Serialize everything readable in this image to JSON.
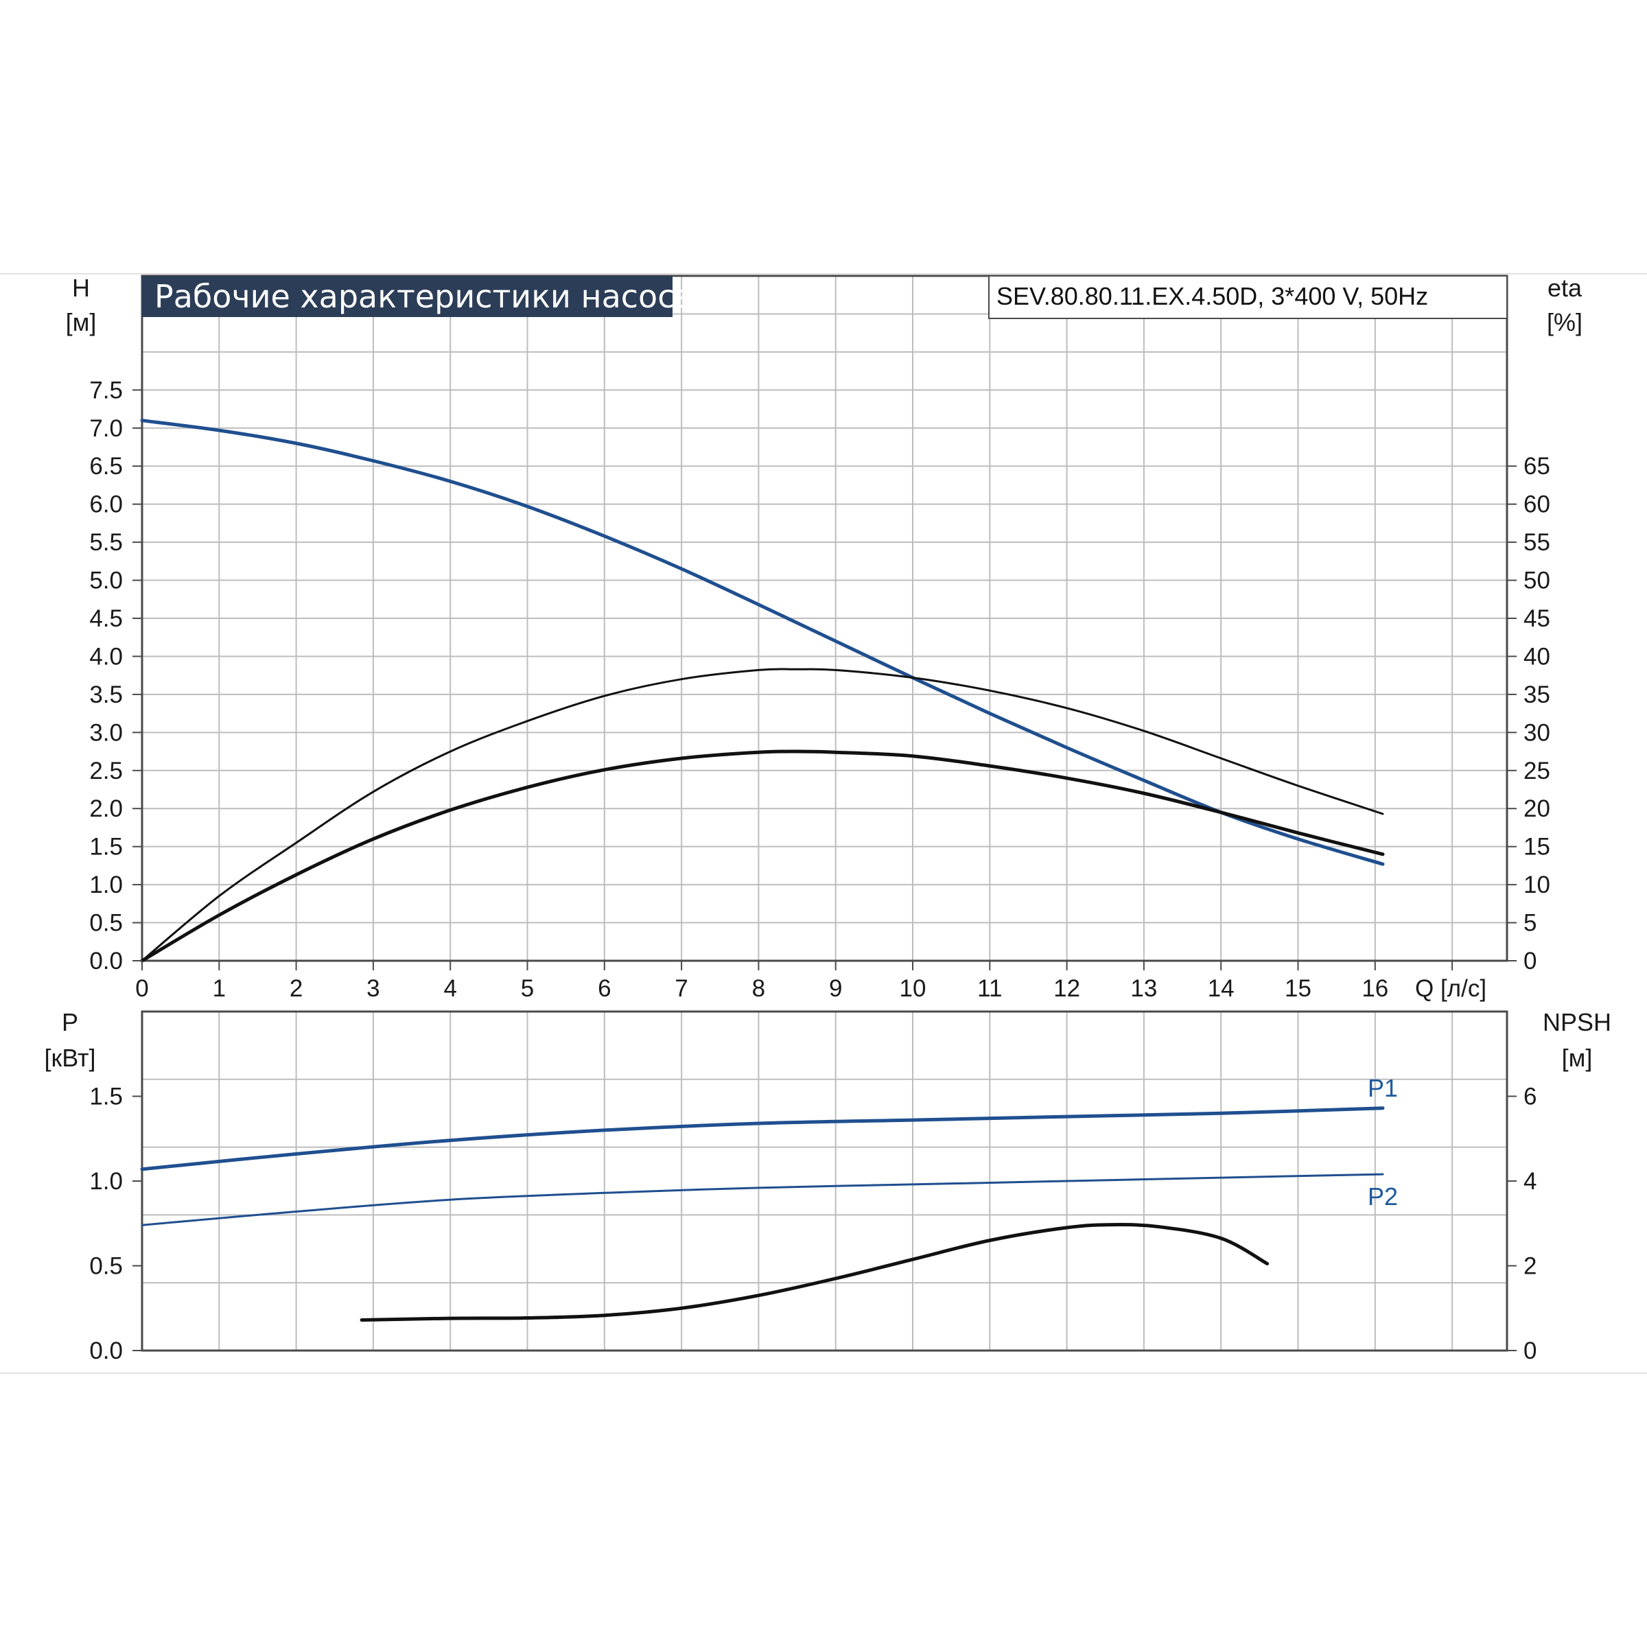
{
  "header": {
    "title": "Рабочие характеристики насоса",
    "model": "SEV.80.80.11.EX.4.50D, 3*400 V, 50Hz"
  },
  "colors": {
    "blue": "#1f4f8f",
    "black": "#111111",
    "grid": "#bdbdbd",
    "title_bg": "#2c3d57"
  },
  "chart_data": [
    {
      "type": "line",
      "id": "head-efficiency",
      "x_label": "Q [л/с]",
      "xlim": [
        0,
        17.7
      ],
      "x_ticks": [
        "0",
        "1",
        "2",
        "3",
        "4",
        "5",
        "6",
        "7",
        "8",
        "9",
        "10",
        "11",
        "12",
        "13",
        "14",
        "15",
        "16"
      ],
      "y_label_line1": "H",
      "y_label_line2": "[м]",
      "ylim": [
        0,
        9
      ],
      "y_ticks": [
        "0.0",
        "0.5",
        "1.0",
        "1.5",
        "2.0",
        "2.5",
        "3.0",
        "3.5",
        "4.0",
        "4.5",
        "5.0",
        "5.5",
        "6.0",
        "6.5",
        "7.0",
        "7.5"
      ],
      "y2_label_line1": "eta",
      "y2_label_line2": "[%]",
      "y2lim": [
        0,
        90
      ],
      "y2_ticks": [
        "0",
        "5",
        "10",
        "15",
        "20",
        "25",
        "30",
        "35",
        "40",
        "45",
        "50",
        "55",
        "60",
        "65"
      ],
      "grid": true,
      "series": [
        {
          "key": "head",
          "axis": "y",
          "color": "#1f4f8f",
          "width": 5,
          "points": [
            [
              0,
              7.1
            ],
            [
              1,
              6.97
            ],
            [
              2,
              6.8
            ],
            [
              3,
              6.57
            ],
            [
              4,
              6.3
            ],
            [
              5,
              5.97
            ],
            [
              6,
              5.58
            ],
            [
              7,
              5.15
            ],
            [
              8,
              4.68
            ],
            [
              9,
              4.2
            ],
            [
              10,
              3.72
            ],
            [
              11,
              3.25
            ],
            [
              12,
              2.8
            ],
            [
              13,
              2.37
            ],
            [
              14,
              1.95
            ],
            [
              15,
              1.6
            ],
            [
              16.1,
              1.27
            ]
          ]
        },
        {
          "key": "eta-thin",
          "axis": "y2",
          "color": "#111111",
          "width": 3,
          "points": [
            [
              0,
              0
            ],
            [
              1,
              8.5
            ],
            [
              2,
              15.5
            ],
            [
              3,
              22.2
            ],
            [
              4,
              27.5
            ],
            [
              5,
              31.5
            ],
            [
              6,
              34.8
            ],
            [
              7,
              37
            ],
            [
              8,
              38.2
            ],
            [
              8.5,
              38.3
            ],
            [
              9,
              38.2
            ],
            [
              10,
              37.2
            ],
            [
              11,
              35.5
            ],
            [
              12,
              33.2
            ],
            [
              13,
              30.2
            ],
            [
              14,
              26.6
            ],
            [
              15,
              23
            ],
            [
              16.1,
              19.3
            ]
          ]
        },
        {
          "key": "eta-thick",
          "axis": "y2",
          "color": "#111111",
          "width": 5,
          "points": [
            [
              0,
              0
            ],
            [
              1,
              6
            ],
            [
              2,
              11.3
            ],
            [
              3,
              16
            ],
            [
              4,
              19.8
            ],
            [
              5,
              22.8
            ],
            [
              6,
              25.1
            ],
            [
              7,
              26.6
            ],
            [
              8,
              27.4
            ],
            [
              8.6,
              27.5
            ],
            [
              9,
              27.4
            ],
            [
              10,
              26.9
            ],
            [
              11,
              25.6
            ],
            [
              12,
              24
            ],
            [
              13,
              22
            ],
            [
              14,
              19.5
            ],
            [
              15,
              16.8
            ],
            [
              16.1,
              14
            ]
          ]
        }
      ]
    },
    {
      "type": "line",
      "id": "power-npsh",
      "xlim": [
        0,
        17.7
      ],
      "y_label_line1": "P",
      "y_label_line2": "[кВт]",
      "ylim": [
        0,
        2.0
      ],
      "y_ticks": [
        "0.0",
        "0.5",
        "1.0",
        "1.5"
      ],
      "y2_label_line1": "NPSH",
      "y2_label_line2": "[м]",
      "y2lim": [
        0,
        8
      ],
      "y2_ticks": [
        "0",
        "2",
        "4",
        "6"
      ],
      "grid": true,
      "series": [
        {
          "key": "P1",
          "name": "P1",
          "axis": "y",
          "color": "#1f4f8f",
          "width": 5,
          "points": [
            [
              0,
              1.07
            ],
            [
              2,
              1.16
            ],
            [
              4,
              1.24
            ],
            [
              6,
              1.3
            ],
            [
              8,
              1.34
            ],
            [
              10,
              1.36
            ],
            [
              12,
              1.38
            ],
            [
              14,
              1.4
            ],
            [
              16.1,
              1.43
            ]
          ]
        },
        {
          "key": "P2",
          "name": "P2",
          "axis": "y",
          "color": "#1f4f8f",
          "width": 3,
          "points": [
            [
              0,
              0.74
            ],
            [
              2,
              0.82
            ],
            [
              4,
              0.89
            ],
            [
              6,
              0.93
            ],
            [
              8,
              0.96
            ],
            [
              10,
              0.98
            ],
            [
              12,
              1.0
            ],
            [
              14,
              1.02
            ],
            [
              16.1,
              1.04
            ]
          ]
        },
        {
          "key": "npsh",
          "axis": "y2",
          "color": "#111111",
          "width": 5,
          "points": [
            [
              2.85,
              0.72
            ],
            [
              4,
              0.76
            ],
            [
              5,
              0.77
            ],
            [
              6,
              0.83
            ],
            [
              7,
              1.0
            ],
            [
              8,
              1.3
            ],
            [
              9,
              1.7
            ],
            [
              10,
              2.15
            ],
            [
              11,
              2.6
            ],
            [
              12,
              2.9
            ],
            [
              12.6,
              2.97
            ],
            [
              13.2,
              2.92
            ],
            [
              14,
              2.65
            ],
            [
              14.6,
              2.05
            ]
          ]
        }
      ]
    }
  ]
}
